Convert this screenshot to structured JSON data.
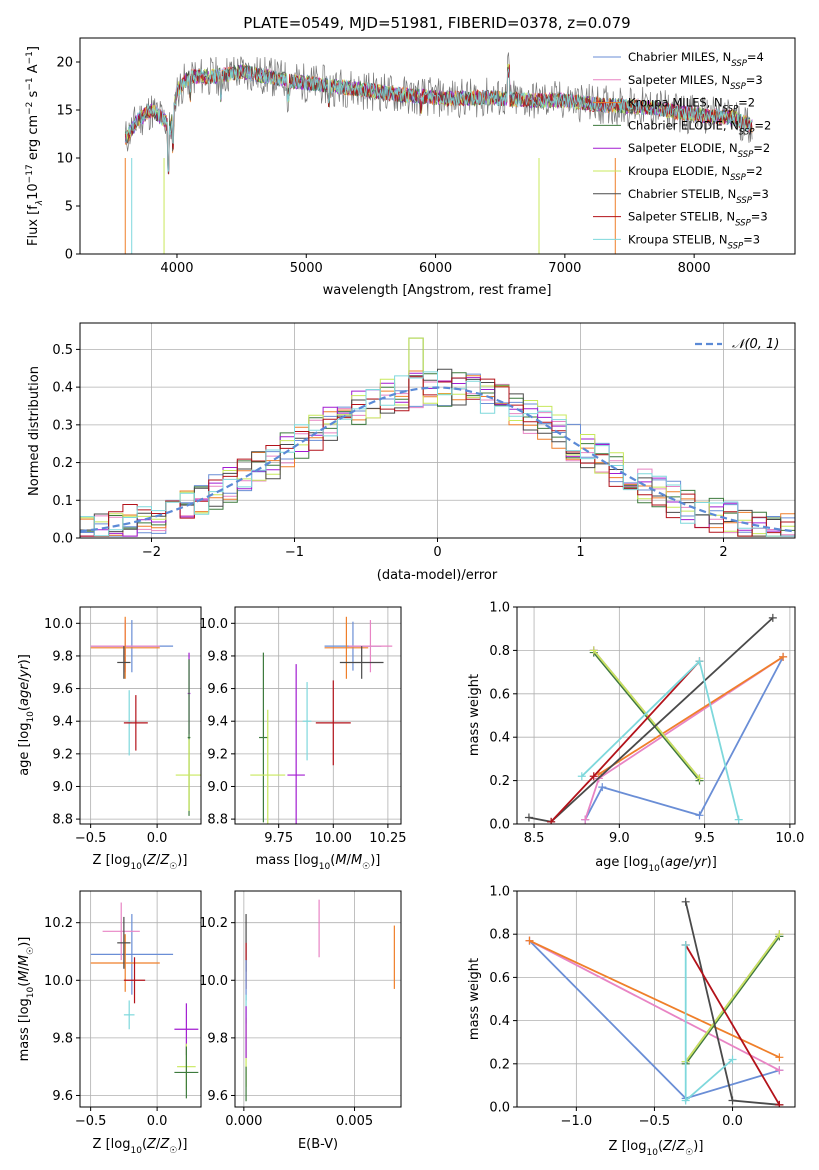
{
  "figure": {
    "title": "PLATE=0549, MJD=51981, FIBERID=0378, z=0.079"
  },
  "colors": {
    "Chabrier MILES": "#6a8ed6",
    "Salpeter MILES": "#e884c4",
    "Kroupa MILES": "#ef7f2a",
    "Chabrier ELODIE": "#3d7a3d",
    "Salpeter ELODIE": "#a21cd1",
    "Kroupa ELODIE": "#c8e85c",
    "Chabrier STELIB": "#4a4a4a",
    "Salpeter STELIB": "#b3121a",
    "Kroupa STELIB": "#7ed8dc"
  },
  "legend_entries": [
    {
      "key": "Chabrier MILES",
      "label": "Chabrier MILES, N",
      "sub": "SSP",
      "tail": "=4"
    },
    {
      "key": "Salpeter MILES",
      "label": "Salpeter MILES, N",
      "sub": "SSP",
      "tail": "=3"
    },
    {
      "key": "Kroupa MILES",
      "label": "Kroupa MILES, N",
      "sub": "SSP",
      "tail": "=2"
    },
    {
      "key": "Chabrier ELODIE",
      "label": "Chabrier ELODIE, N",
      "sub": "SSP",
      "tail": "=2"
    },
    {
      "key": "Salpeter ELODIE",
      "label": "Salpeter ELODIE, N",
      "sub": "SSP",
      "tail": "=2"
    },
    {
      "key": "Kroupa ELODIE",
      "label": "Kroupa ELODIE, N",
      "sub": "SSP",
      "tail": "=2"
    },
    {
      "key": "Chabrier STELIB",
      "label": "Chabrier STELIB, N",
      "sub": "SSP",
      "tail": "=3"
    },
    {
      "key": "Salpeter STELIB",
      "label": "Salpeter STELIB, N",
      "sub": "SSP",
      "tail": "=3"
    },
    {
      "key": "Kroupa STELIB",
      "label": "Kroupa STELIB, N",
      "sub": "SSP",
      "tail": "=3"
    }
  ],
  "chart_data": [
    {
      "id": "spectrum",
      "type": "line",
      "xlabel": "wavelength [Angstrom, rest frame]",
      "ylabel": "Flux [fλ10⁻¹⁷ erg cm⁻² s⁻¹ A⁻¹]",
      "xlim": [
        3250,
        8780
      ],
      "ylim": [
        0,
        22.5
      ],
      "xticks": [
        4000,
        5000,
        6000,
        7000,
        8000
      ],
      "yticks": [
        0,
        5,
        10,
        15,
        20
      ],
      "grid": false,
      "legend": "top-right",
      "continuum": [
        [
          3600,
          12
        ],
        [
          3700,
          14
        ],
        [
          3800,
          15
        ],
        [
          3900,
          14
        ],
        [
          3950,
          13
        ],
        [
          4000,
          17
        ],
        [
          4100,
          18.5
        ],
        [
          4300,
          18.5
        ],
        [
          4500,
          19
        ],
        [
          4700,
          18.5
        ],
        [
          4900,
          18
        ],
        [
          5200,
          17.5
        ],
        [
          5500,
          17
        ],
        [
          5800,
          16.5
        ],
        [
          6100,
          16.2
        ],
        [
          6400,
          16.3
        ],
        [
          6700,
          16
        ],
        [
          7000,
          16
        ],
        [
          7300,
          15.5
        ],
        [
          7500,
          15.4
        ],
        [
          7700,
          15.2
        ],
        [
          7900,
          14.7
        ],
        [
          8100,
          14.4
        ],
        [
          8300,
          14.2
        ],
        [
          8450,
          13.3
        ]
      ]
    },
    {
      "id": "residuals",
      "type": "step",
      "xlabel": "(data-model)/error",
      "ylabel": "Normed distribution",
      "xlim": [
        -2.5,
        2.5
      ],
      "ylim": [
        0,
        0.57
      ],
      "xticks": [
        -2,
        -1,
        0,
        1,
        2
      ],
      "yticks": [
        0.0,
        0.1,
        0.2,
        0.3,
        0.4,
        0.5
      ],
      "grid": true,
      "legend_label": "𝒩(0, 1)",
      "legend": "top-right",
      "bin_width": 0.1
    },
    {
      "id": "age_vs_Z",
      "type": "errorbar",
      "xlabel": "Z [log10(Z/Z☉)]",
      "ylabel": "age  [log10(age/yr)]",
      "xlim": [
        -0.58,
        0.33
      ],
      "ylim": [
        8.77,
        10.1
      ],
      "xticks": [
        -0.5,
        0.0
      ],
      "yticks": [
        8.8,
        9.0,
        9.2,
        9.4,
        9.6,
        9.8,
        10.0
      ],
      "grid": true,
      "points": [
        {
          "key": "Chabrier MILES",
          "x": -0.19,
          "y": 9.86,
          "xerr": 0.31,
          "yerr": 0.16
        },
        {
          "key": "Salpeter MILES",
          "x": -0.24,
          "y": 9.86,
          "xerr": 0.26,
          "yerr": 0.16
        },
        {
          "key": "Kroupa MILES",
          "x": -0.24,
          "y": 9.85,
          "xerr": 0.26,
          "yerr": 0.19
        },
        {
          "key": "Chabrier STELIB",
          "x": -0.25,
          "y": 9.76,
          "xerr": 0.05,
          "yerr": 0.1
        },
        {
          "key": "Salpeter ELODIE",
          "x": 0.24,
          "y": 9.57,
          "xerr": 0.01,
          "yerr": 0.25
        },
        {
          "key": "Kroupa STELIB",
          "x": -0.21,
          "y": 9.39,
          "xerr": 0.02,
          "yerr": 0.2
        },
        {
          "key": "Salpeter STELIB",
          "x": -0.16,
          "y": 9.39,
          "xerr": 0.09,
          "yerr": 0.17
        },
        {
          "key": "Chabrier ELODIE",
          "x": 0.24,
          "y": 9.3,
          "xerr": 0.01,
          "yerr": 0.48
        },
        {
          "key": "Kroupa ELODIE",
          "x": 0.24,
          "y": 9.07,
          "xerr": 0.1,
          "yerr": 0.22
        }
      ]
    },
    {
      "id": "age_vs_mass",
      "type": "errorbar",
      "xlabel": "mass [log10(M/M☉)]",
      "ylabel": "",
      "xlim": [
        9.55,
        10.31
      ],
      "ylim": [
        8.77,
        10.1
      ],
      "xticks": [
        9.75,
        10.0,
        10.25
      ],
      "yticks": [
        8.8,
        9.0,
        9.2,
        9.4,
        9.6,
        9.8,
        10.0
      ],
      "grid": true,
      "points": [
        {
          "key": "Chabrier MILES",
          "x": 10.09,
          "y": 9.86,
          "xerr": 0.13,
          "yerr": 0.15
        },
        {
          "key": "Salpeter MILES",
          "x": 10.17,
          "y": 9.86,
          "xerr": 0.1,
          "yerr": 0.16
        },
        {
          "key": "Kroupa MILES",
          "x": 10.06,
          "y": 9.85,
          "xerr": 0.1,
          "yerr": 0.19
        },
        {
          "key": "Chabrier STELIB",
          "x": 10.13,
          "y": 9.76,
          "xerr": 0.1,
          "yerr": 0.1
        },
        {
          "key": "Salpeter ELODIE",
          "x": 9.83,
          "y": 9.07,
          "xerr": 0.04,
          "yerr": 0.68
        },
        {
          "key": "Kroupa STELIB",
          "x": 9.88,
          "y": 9.4,
          "xerr": 0.02,
          "yerr": 0.24
        },
        {
          "key": "Salpeter STELIB",
          "x": 10.0,
          "y": 9.39,
          "xerr": 0.08,
          "yerr": 0.26
        },
        {
          "key": "Chabrier ELODIE",
          "x": 9.68,
          "y": 9.3,
          "xerr": 0.02,
          "yerr": 0.52
        },
        {
          "key": "Kroupa ELODIE",
          "x": 9.7,
          "y": 9.07,
          "xerr": 0.08,
          "yerr": 0.4
        }
      ]
    },
    {
      "id": "massweight_vs_age",
      "type": "line",
      "xlabel": "age  [log10(age/yr)]",
      "ylabel": "mass weight",
      "xlim": [
        8.4,
        10.03
      ],
      "ylim": [
        0,
        1.0
      ],
      "xticks": [
        8.5,
        9.0,
        9.5,
        10.0
      ],
      "yticks": [
        0.0,
        0.2,
        0.4,
        0.6,
        0.8,
        1.0
      ],
      "grid": true,
      "series": [
        {
          "key": "Chabrier MILES",
          "x": [
            9.96,
            9.47,
            8.9,
            8.8
          ],
          "y": [
            0.77,
            0.04,
            0.17,
            0.02
          ]
        },
        {
          "key": "Salpeter MILES",
          "x": [
            9.96,
            8.88,
            8.8
          ],
          "y": [
            0.77,
            0.21,
            0.02
          ]
        },
        {
          "key": "Kroupa MILES",
          "x": [
            9.96,
            8.88
          ],
          "y": [
            0.77,
            0.23
          ]
        },
        {
          "key": "Chabrier ELODIE",
          "x": [
            9.47,
            8.85
          ],
          "y": [
            0.2,
            0.79
          ]
        },
        {
          "key": "Salpeter ELODIE",
          "x": [
            9.47,
            8.85
          ],
          "y": [
            0.21,
            0.8
          ]
        },
        {
          "key": "Kroupa ELODIE",
          "x": [
            9.47,
            8.85
          ],
          "y": [
            0.21,
            0.8
          ]
        },
        {
          "key": "Chabrier STELIB",
          "x": [
            8.47,
            8.6,
            9.9
          ],
          "y": [
            0.03,
            0.01,
            0.95
          ]
        },
        {
          "key": "Salpeter STELIB",
          "x": [
            8.6,
            8.85,
            9.47
          ],
          "y": [
            0.01,
            0.22,
            0.75
          ]
        },
        {
          "key": "Kroupa STELIB",
          "x": [
            8.78,
            9.47,
            9.7
          ],
          "y": [
            0.22,
            0.75,
            0.02
          ]
        }
      ]
    },
    {
      "id": "mass_vs_Z",
      "type": "errorbar",
      "xlabel": "Z [log10(Z/Z☉)]",
      "ylabel": "mass [log10(M/M☉)]",
      "xlim": [
        -0.58,
        0.33
      ],
      "ylim": [
        9.56,
        10.31
      ],
      "xticks": [
        -0.5,
        0.0
      ],
      "yticks": [
        9.6,
        9.8,
        10.0,
        10.2
      ],
      "grid": true,
      "points": [
        {
          "key": "Chabrier MILES",
          "x": -0.19,
          "y": 10.09,
          "xerr": 0.31,
          "yerr": 0.14
        },
        {
          "key": "Salpeter MILES",
          "x": -0.27,
          "y": 10.17,
          "xerr": 0.14,
          "yerr": 0.1
        },
        {
          "key": "Kroupa MILES",
          "x": -0.24,
          "y": 10.06,
          "xerr": 0.26,
          "yerr": 0.1
        },
        {
          "key": "Chabrier STELIB",
          "x": -0.25,
          "y": 10.13,
          "xerr": 0.05,
          "yerr": 0.09
        },
        {
          "key": "Salpeter STELIB",
          "x": -0.17,
          "y": 10.0,
          "xerr": 0.08,
          "yerr": 0.08
        },
        {
          "key": "Kroupa STELIB",
          "x": -0.21,
          "y": 9.88,
          "xerr": 0.04,
          "yerr": 0.05
        },
        {
          "key": "Salpeter ELODIE",
          "x": 0.22,
          "y": 9.83,
          "xerr": 0.09,
          "yerr": 0.09
        },
        {
          "key": "Kroupa ELODIE",
          "x": 0.22,
          "y": 9.7,
          "xerr": 0.07,
          "yerr": 0.08
        },
        {
          "key": "Chabrier ELODIE",
          "x": 0.22,
          "y": 9.68,
          "xerr": 0.09,
          "yerr": 0.09
        }
      ]
    },
    {
      "id": "mass_vs_EBV",
      "type": "errorbar",
      "xlabel": "E(B-V)",
      "ylabel": "",
      "xlim": [
        -0.0004,
        0.0071
      ],
      "ylim": [
        9.56,
        10.31
      ],
      "xticks": [
        0.0,
        0.005
      ],
      "yticks": [
        9.6,
        9.8,
        10.0,
        10.2
      ],
      "grid": true,
      "points": [
        {
          "key": "Salpeter MILES",
          "x": 0.0034,
          "y": 10.18,
          "xerr": 0,
          "yerr": 0.1
        },
        {
          "key": "Kroupa MILES",
          "x": 0.0068,
          "y": 10.08,
          "xerr": 0,
          "yerr": 0.11
        },
        {
          "key": "Chabrier STELIB",
          "x": 0.0001,
          "y": 10.13,
          "xerr": 0,
          "yerr": 0.1
        },
        {
          "key": "Salpeter STELIB",
          "x": 0.0001,
          "y": 10.05,
          "xerr": 0,
          "yerr": 0.08
        },
        {
          "key": "Chabrier MILES",
          "x": 0.0001,
          "y": 10.0,
          "xerr": 0,
          "yerr": 0.07
        },
        {
          "key": "Kroupa STELIB",
          "x": 0.0001,
          "y": 9.9,
          "xerr": 0,
          "yerr": 0.05
        },
        {
          "key": "Kroupa ELODIE",
          "x": 0.0001,
          "y": 9.75,
          "xerr": 0,
          "yerr": 0.12
        },
        {
          "key": "Salpeter ELODIE",
          "x": 0.0001,
          "y": 9.82,
          "xerr": 0,
          "yerr": 0.09
        },
        {
          "key": "Chabrier ELODIE",
          "x": 0.0001,
          "y": 9.64,
          "xerr": 0,
          "yerr": 0.06
        }
      ]
    },
    {
      "id": "massweight_vs_Z",
      "type": "line",
      "xlabel": "Z [log10(Z/Z☉)]",
      "ylabel": "mass weight",
      "xlim": [
        -1.38,
        0.4
      ],
      "ylim": [
        0,
        1.0
      ],
      "xticks": [
        -1.0,
        -0.5,
        0.0
      ],
      "yticks": [
        0.0,
        0.2,
        0.4,
        0.6,
        0.8,
        1.0
      ],
      "grid": true,
      "series": [
        {
          "key": "Chabrier MILES",
          "x": [
            -1.3,
            -0.3,
            0.3
          ],
          "y": [
            0.77,
            0.04,
            0.17
          ]
        },
        {
          "key": "Salpeter MILES",
          "x": [
            -1.3,
            0.3
          ],
          "y": [
            0.77,
            0.17
          ]
        },
        {
          "key": "Kroupa MILES",
          "x": [
            -1.3,
            0.3
          ],
          "y": [
            0.77,
            0.23
          ]
        },
        {
          "key": "Chabrier ELODIE",
          "x": [
            -0.3,
            0.3
          ],
          "y": [
            0.2,
            0.79
          ]
        },
        {
          "key": "Salpeter ELODIE",
          "x": [
            -0.3,
            0.3
          ],
          "y": [
            0.21,
            0.8
          ]
        },
        {
          "key": "Kroupa ELODIE",
          "x": [
            -0.3,
            0.3
          ],
          "y": [
            0.21,
            0.8
          ]
        },
        {
          "key": "Chabrier STELIB",
          "x": [
            -0.3,
            0.0,
            0.3
          ],
          "y": [
            0.95,
            0.03,
            0.01
          ]
        },
        {
          "key": "Salpeter STELIB",
          "x": [
            -0.3,
            0.3
          ],
          "y": [
            0.75,
            0.01
          ]
        },
        {
          "key": "Kroupa STELIB",
          "x": [
            -0.3,
            -0.3,
            0.0
          ],
          "y": [
            0.75,
            0.03,
            0.22
          ]
        }
      ]
    }
  ]
}
